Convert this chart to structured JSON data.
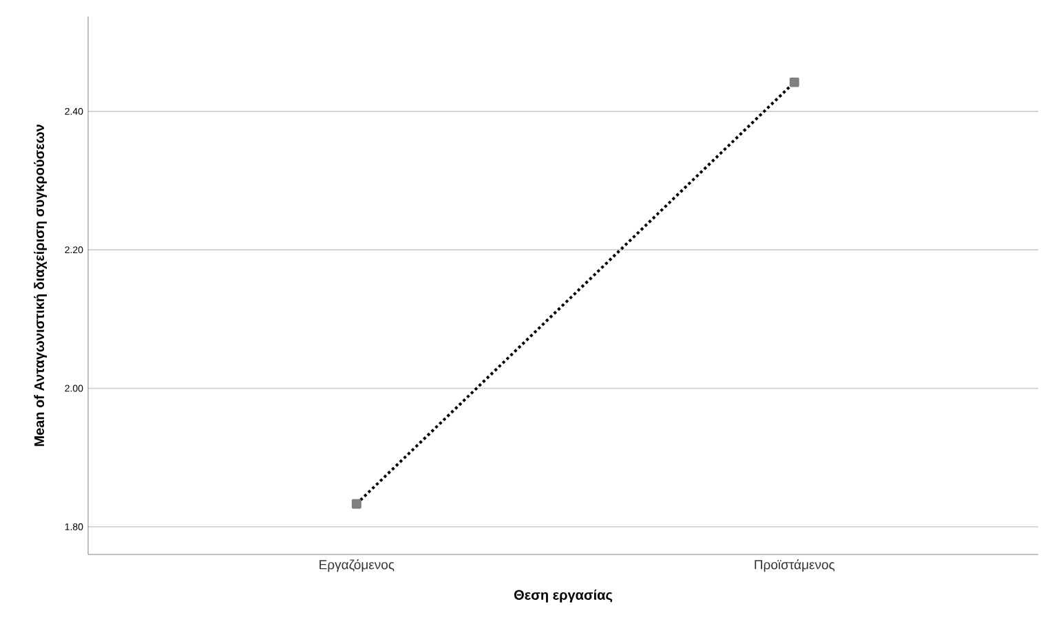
{
  "chart_data": {
    "type": "line",
    "xlabel": "Θεση εργασίας",
    "ylabel": "Mean of Ανταγωνιστική διαχείριση συγκρούσεων",
    "categories": [
      "Εργαζόμενος",
      "Προϊστάμενος"
    ],
    "series": [
      {
        "color": "#000000",
        "values": [
          1.833,
          2.442
        ]
      }
    ],
    "ylim": [
      1.76,
      2.537
    ],
    "yticks": [
      {
        "value": 1.8,
        "label": "1.80"
      },
      {
        "value": 2.0,
        "label": "2.00"
      },
      {
        "value": 2.2,
        "label": "2.20"
      },
      {
        "value": 2.4,
        "label": "2.40"
      }
    ],
    "grid": "y",
    "marker": "square",
    "line_style": "dotted"
  }
}
